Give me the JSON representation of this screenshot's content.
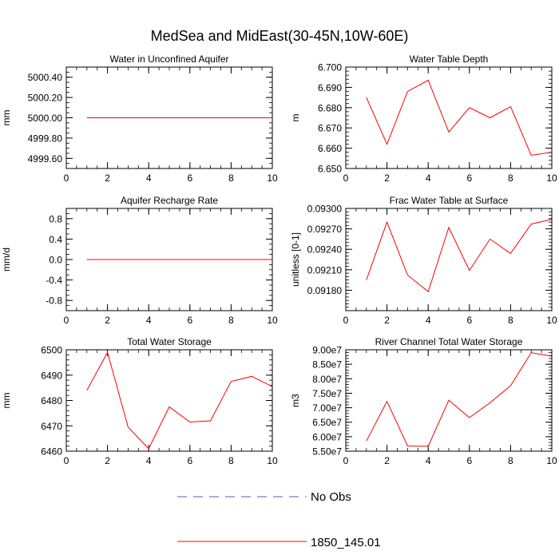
{
  "figure_title": "MedSea and MidEast(30-45N,10W-60E)",
  "legend": {
    "placement": "bottom-center",
    "entries": [
      {
        "label": "No Obs",
        "color": "#5a5aa8",
        "dash": "dashed"
      },
      {
        "label": "1850_145.01",
        "color": "#ff0000",
        "dash": "solid"
      }
    ]
  },
  "chart_data": [
    {
      "type": "line",
      "title": "Water in Unconfined Aquifer",
      "xlabel": "",
      "ylabel": "mm",
      "xlim": [
        0,
        10
      ],
      "ylim": [
        4999.5,
        5000.5
      ],
      "xticks": [
        0,
        2,
        4,
        6,
        8,
        10
      ],
      "xtick_labels": [
        "0",
        "2",
        "4",
        "6",
        "8",
        "10"
      ],
      "yticks": [
        4999.6,
        4999.8,
        5000.0,
        5000.2,
        5000.4
      ],
      "ytick_labels": [
        "4999.60",
        "4999.80",
        "5000.00",
        "5000.20",
        "5000.40"
      ],
      "x_minor_step": 0.5,
      "y_minor_step": 0.05,
      "grid": false,
      "series": [
        {
          "name": "1850_145.01",
          "color": "#ff0000",
          "x": [
            1,
            2,
            3,
            4,
            5,
            6,
            7,
            8,
            9,
            10
          ],
          "y": [
            5000,
            5000,
            5000,
            5000,
            5000,
            5000,
            5000,
            5000,
            5000,
            5000
          ]
        }
      ]
    },
    {
      "type": "line",
      "title": "Water Table Depth",
      "xlabel": "",
      "ylabel": "m",
      "xlim": [
        0,
        10
      ],
      "ylim": [
        6.65,
        6.7
      ],
      "xticks": [
        0,
        2,
        4,
        6,
        8,
        10
      ],
      "xtick_labels": [
        "0",
        "2",
        "4",
        "6",
        "8",
        "10"
      ],
      "yticks": [
        6.65,
        6.66,
        6.67,
        6.68,
        6.69,
        6.7
      ],
      "ytick_labels": [
        "6.650",
        "6.660",
        "6.670",
        "6.680",
        "6.690",
        "6.700"
      ],
      "x_minor_step": 0.5,
      "y_minor_step": 0.002,
      "grid": false,
      "series": [
        {
          "name": "1850_145.01",
          "color": "#ff0000",
          "x": [
            1,
            2,
            3,
            4,
            5,
            6,
            7,
            8,
            9,
            10
          ],
          "y": [
            6.685,
            6.662,
            6.688,
            6.6935,
            6.668,
            6.68,
            6.675,
            6.6805,
            6.6565,
            6.658
          ]
        }
      ]
    },
    {
      "type": "line",
      "title": "Aquifer Recharge Rate",
      "xlabel": "",
      "ylabel": "mm/d",
      "xlim": [
        0,
        10
      ],
      "ylim": [
        -1.0,
        1.0
      ],
      "xticks": [
        0,
        2,
        4,
        6,
        8,
        10
      ],
      "xtick_labels": [
        "0",
        "2",
        "4",
        "6",
        "8",
        "10"
      ],
      "yticks": [
        -0.8,
        -0.4,
        0.0,
        0.4,
        0.8
      ],
      "ytick_labels": [
        "-0.8",
        "-0.4",
        "0.0",
        "0.4",
        "0.8"
      ],
      "x_minor_step": 0.5,
      "y_minor_step": 0.1,
      "grid": false,
      "series": [
        {
          "name": "1850_145.01",
          "color": "#ff0000",
          "x": [
            1,
            2,
            3,
            4,
            5,
            6,
            7,
            8,
            9,
            10
          ],
          "y": [
            0,
            0,
            0,
            0,
            0,
            0,
            0,
            0,
            0,
            0
          ]
        }
      ]
    },
    {
      "type": "line",
      "title": "Frac Water Table at Surface",
      "xlabel": "",
      "ylabel": "unitless [0-1]",
      "xlim": [
        0,
        10
      ],
      "ylim": [
        0.0915,
        0.093
      ],
      "xticks": [
        0,
        2,
        4,
        6,
        8,
        10
      ],
      "xtick_labels": [
        "0",
        "2",
        "4",
        "6",
        "8",
        "10"
      ],
      "yticks": [
        0.0918,
        0.0921,
        0.0924,
        0.0927,
        0.093
      ],
      "ytick_labels": [
        "0.09180",
        "0.09210",
        "0.09240",
        "0.09270",
        "0.09300"
      ],
      "x_minor_step": 0.5,
      "y_minor_step": 5e-05,
      "grid": false,
      "series": [
        {
          "name": "1850_145.01",
          "color": "#ff0000",
          "x": [
            1,
            2,
            3,
            4,
            5,
            6,
            7,
            8,
            9,
            10
          ],
          "y": [
            0.09195,
            0.0928,
            0.09202,
            0.09178,
            0.09272,
            0.09209,
            0.09255,
            0.09234,
            0.09277,
            0.09284
          ]
        }
      ]
    },
    {
      "type": "line",
      "title": "Total Water Storage",
      "xlabel": "",
      "ylabel": "mm",
      "xlim": [
        0,
        10
      ],
      "ylim": [
        6460,
        6500
      ],
      "xticks": [
        0,
        2,
        4,
        6,
        8,
        10
      ],
      "xtick_labels": [
        "0",
        "2",
        "4",
        "6",
        "8",
        "10"
      ],
      "yticks": [
        6460,
        6470,
        6480,
        6490,
        6500
      ],
      "ytick_labels": [
        "6460",
        "6470",
        "6480",
        "6490",
        "6500"
      ],
      "x_minor_step": 0.5,
      "y_minor_step": 2,
      "grid": false,
      "series": [
        {
          "name": "1850_145.01",
          "color": "#ff0000",
          "x": [
            1,
            2,
            3,
            4,
            5,
            6,
            7,
            8,
            9,
            10
          ],
          "y": [
            6484,
            6499,
            6469.5,
            6461,
            6477.5,
            6471.5,
            6472,
            6487.5,
            6489.5,
            6485.5
          ]
        }
      ]
    },
    {
      "type": "line",
      "title": "River Channel Total Water Storage",
      "xlabel": "",
      "ylabel": "m3",
      "xlim": [
        0,
        10
      ],
      "ylim": [
        55000000,
        90000000
      ],
      "xticks": [
        0,
        2,
        4,
        6,
        8,
        10
      ],
      "xtick_labels": [
        "0",
        "2",
        "4",
        "6",
        "8",
        "10"
      ],
      "yticks": [
        55000000,
        60000000,
        65000000,
        70000000,
        75000000,
        80000000,
        85000000,
        90000000
      ],
      "ytick_labels": [
        "5.50e7",
        "6.00e7",
        "6.50e7",
        "7.00e7",
        "7.50e7",
        "8.00e7",
        "8.50e7",
        "9.00e7"
      ],
      "x_minor_step": 0.5,
      "y_minor_step": 1000000,
      "grid": false,
      "series": [
        {
          "name": "1850_145.01",
          "color": "#ff0000",
          "x": [
            1,
            2,
            3,
            4,
            5,
            6,
            7,
            8,
            9,
            10
          ],
          "y": [
            58500000,
            72200000,
            56800000,
            56700000,
            72600000,
            66600000,
            71700000,
            77600000,
            89000000,
            87800000
          ]
        }
      ]
    }
  ]
}
